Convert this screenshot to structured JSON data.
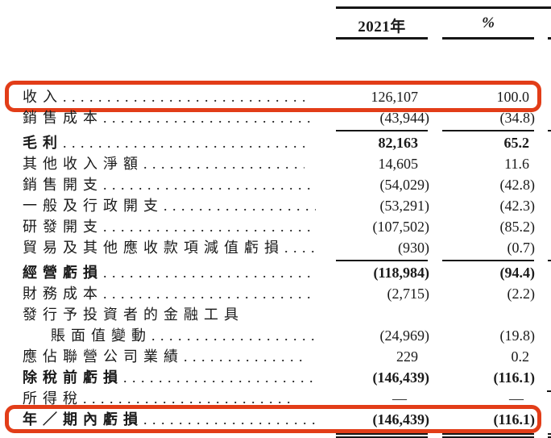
{
  "page": {
    "background": "#ffffff",
    "text_color": "#1a1a1a",
    "rule_color": "#161616",
    "highlight_color": "#e23d18"
  },
  "header": {
    "year_label": "2021年",
    "percent_label": "%"
  },
  "rows": [
    {
      "label": "收入",
      "value_2021": "126,107",
      "value_pct": "100.0",
      "bold": false,
      "indent": false,
      "leader": true,
      "highlight": true,
      "rule_below": false
    },
    {
      "label": "銷售成本",
      "value_2021": "(43,944)",
      "value_pct": "(34.8)",
      "bold": false,
      "indent": false,
      "leader": true,
      "highlight": false,
      "rule_below": true
    },
    {
      "label": "毛利",
      "value_2021": "82,163",
      "value_pct": "65.2",
      "bold": true,
      "indent": false,
      "leader": true,
      "highlight": false,
      "rule_below": false
    },
    {
      "label": "其他收入淨額",
      "value_2021": "14,605",
      "value_pct": "11.6",
      "bold": false,
      "indent": false,
      "leader": true,
      "highlight": false,
      "rule_below": false
    },
    {
      "label": "銷售開支",
      "value_2021": "(54,029)",
      "value_pct": "(42.8)",
      "bold": false,
      "indent": false,
      "leader": true,
      "highlight": false,
      "rule_below": false
    },
    {
      "label": "一般及行政開支",
      "value_2021": "(53,291)",
      "value_pct": "(42.3)",
      "bold": false,
      "indent": false,
      "leader": true,
      "highlight": false,
      "rule_below": false
    },
    {
      "label": "研發開支",
      "value_2021": "(107,502)",
      "value_pct": "(85.2)",
      "bold": false,
      "indent": false,
      "leader": true,
      "highlight": false,
      "rule_below": false
    },
    {
      "label": "貿易及其他應收款項減值虧損",
      "value_2021": "(930)",
      "value_pct": "(0.7)",
      "bold": false,
      "indent": false,
      "leader": true,
      "highlight": false,
      "rule_below": true
    },
    {
      "label": "經營虧損",
      "value_2021": "(118,984)",
      "value_pct": "(94.4)",
      "bold": true,
      "indent": false,
      "leader": true,
      "highlight": false,
      "rule_below": false
    },
    {
      "label": "財務成本",
      "value_2021": "(2,715)",
      "value_pct": "(2.2)",
      "bold": false,
      "indent": false,
      "leader": true,
      "highlight": false,
      "rule_below": false
    },
    {
      "label": "發行予投資者的金融工具",
      "value_2021": "",
      "value_pct": "",
      "bold": false,
      "indent": false,
      "leader": false,
      "highlight": false,
      "rule_below": false
    },
    {
      "label": "賬面值變動",
      "value_2021": "(24,969)",
      "value_pct": "(19.8)",
      "bold": false,
      "indent": true,
      "leader": true,
      "highlight": false,
      "rule_below": false
    },
    {
      "label": "應佔聯營公司業績",
      "value_2021": "229",
      "value_pct": "0.2",
      "bold": false,
      "indent": false,
      "leader": true,
      "highlight": false,
      "rule_below": false
    },
    {
      "label": "除稅前虧損",
      "value_2021": "(146,439)",
      "value_pct": "(116.1)",
      "bold": true,
      "indent": false,
      "leader": true,
      "highlight": false,
      "rule_below": false
    },
    {
      "label": "所得稅",
      "value_2021": "—",
      "value_pct": "—",
      "bold": false,
      "indent": false,
      "leader": true,
      "highlight": false,
      "rule_below": false
    },
    {
      "label": "年／期內虧損",
      "value_2021": "(146,439)",
      "value_pct": "(116.1)",
      "bold": true,
      "indent": false,
      "leader": true,
      "highlight": true,
      "rule_below": false
    }
  ]
}
